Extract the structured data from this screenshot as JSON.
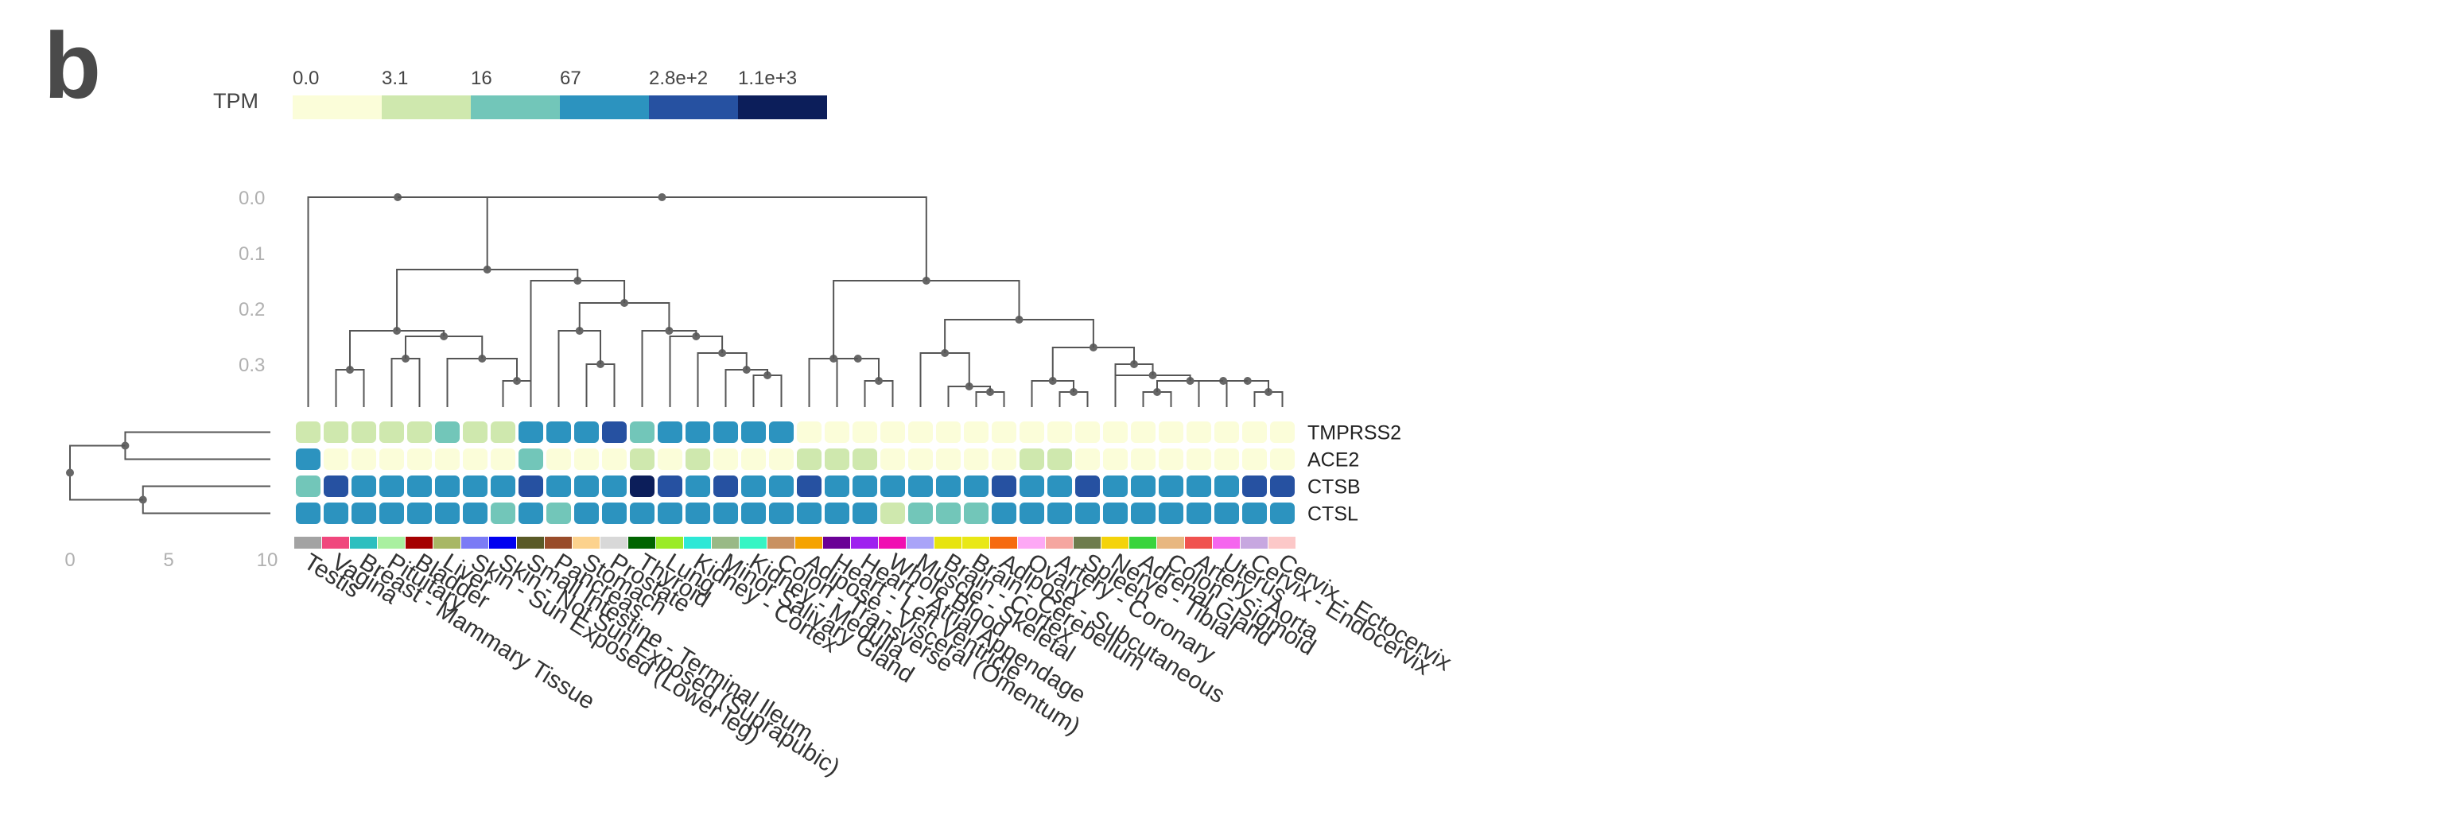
{
  "panel_label": "b",
  "chart_data": {
    "type": "heatmap",
    "title": "",
    "legend": {
      "label": "TPM",
      "ticks": [
        "0.0",
        "3.1",
        "16",
        "67",
        "2.8e+2",
        "1.1e+3"
      ],
      "colors": [
        "#fbfdd9",
        "#cfe8ae",
        "#72c6b9",
        "#2c93bf",
        "#2651a1",
        "#0c1e5a"
      ]
    },
    "col_dendrogram_axis": [
      "0.0",
      "0.1",
      "0.2",
      "0.3"
    ],
    "row_dendrogram_axis": [
      "0",
      "5",
      "10"
    ],
    "genes": [
      "TMPRSS2",
      "ACE2",
      "CTSB",
      "CTSL"
    ],
    "tissues": [
      {
        "name": "Testis",
        "color": "#a3a3a3"
      },
      {
        "name": "Vagina",
        "color": "#f0477d"
      },
      {
        "name": "Breast - Mammary Tissue",
        "color": "#2dbfbf"
      },
      {
        "name": "Pituitary",
        "color": "#a9f0a0"
      },
      {
        "name": "Bladder",
        "color": "#a50000"
      },
      {
        "name": "Liver",
        "color": "#a8b765"
      },
      {
        "name": "Skin - Sun Exposed (Lower leg)",
        "color": "#7b7bf5"
      },
      {
        "name": "Skin - Not Sun Exposed (Suprapubic)",
        "color": "#0000f0"
      },
      {
        "name": "Small Intestine - Terminal Ileum",
        "color": "#5a5a27"
      },
      {
        "name": "Pancreas",
        "color": "#994c2a"
      },
      {
        "name": "Stomach",
        "color": "#fcd28d"
      },
      {
        "name": "Prostate",
        "color": "#d8d8d8"
      },
      {
        "name": "Thyroid",
        "color": "#006400"
      },
      {
        "name": "Lung",
        "color": "#9aeb27"
      },
      {
        "name": "Kidney - Cortex",
        "color": "#2de8d6"
      },
      {
        "name": "Minor Salivary Gland",
        "color": "#99b986"
      },
      {
        "name": "Kidney - Medulla",
        "color": "#35f5c4"
      },
      {
        "name": "Colon - Transverse",
        "color": "#c99161"
      },
      {
        "name": "Adipose - Visceral (Omentum)",
        "color": "#f5a300"
      },
      {
        "name": "Heart - Left Ventricle",
        "color": "#6a0096"
      },
      {
        "name": "Heart - Atrial Appendage",
        "color": "#9f20ef"
      },
      {
        "name": "Whole Blood",
        "color": "#f00fb2"
      },
      {
        "name": "Muscle - Skeletal",
        "color": "#a9a4f8"
      },
      {
        "name": "Brain - Cortex",
        "color": "#e7e40e"
      },
      {
        "name": "Brain - Cerebellum",
        "color": "#e9e816"
      },
      {
        "name": "Adipose - Subcutaneous",
        "color": "#f66a10"
      },
      {
        "name": "Ovary",
        "color": "#fda8f5"
      },
      {
        "name": "Artery - Coronary",
        "color": "#f5a6a0"
      },
      {
        "name": "Spleen",
        "color": "#6e7c4d"
      },
      {
        "name": "Nerve - Tibial",
        "color": "#f4d30a"
      },
      {
        "name": "Adrenal Gland",
        "color": "#39d43d"
      },
      {
        "name": "Colon - Sigmoid",
        "color": "#e8b780"
      },
      {
        "name": "Artery - Aorta",
        "color": "#f0524f"
      },
      {
        "name": "Uterus",
        "color": "#f566ee"
      },
      {
        "name": "Cervix - Endocervix",
        "color": "#c7a7e0"
      },
      {
        "name": "Cervix - Ectocervix",
        "color": "#fcc8c8"
      }
    ],
    "values_level": [
      [
        1,
        1,
        1,
        1,
        1,
        2,
        1,
        1,
        3,
        3,
        3,
        4,
        2,
        3,
        3,
        3,
        3,
        3,
        0,
        0,
        0,
        0,
        0,
        0,
        0,
        0,
        0,
        0,
        0,
        0,
        0,
        0,
        0,
        0,
        0,
        0
      ],
      [
        3,
        0,
        0,
        0,
        0,
        0,
        0,
        0,
        2,
        0,
        0,
        0,
        1,
        0,
        1,
        0,
        0,
        0,
        1,
        1,
        1,
        0,
        0,
        0,
        0,
        0,
        1,
        1,
        0,
        0,
        0,
        0,
        0,
        0,
        0,
        0
      ],
      [
        2,
        4,
        3,
        3,
        3,
        3,
        3,
        3,
        4,
        3,
        3,
        3,
        5,
        4,
        3,
        4,
        3,
        3,
        4,
        3,
        3,
        3,
        3,
        3,
        3,
        4,
        3,
        3,
        4,
        3,
        3,
        3,
        3,
        3,
        4,
        4
      ],
      [
        3,
        3,
        3,
        3,
        3,
        3,
        3,
        2,
        3,
        2,
        3,
        3,
        3,
        3,
        3,
        3,
        3,
        3,
        3,
        3,
        3,
        1,
        2,
        2,
        2,
        3,
        3,
        3,
        3,
        3,
        3,
        3,
        3,
        3,
        3,
        3
      ]
    ],
    "col_order_note": "columns ordered by hierarchical clustering"
  }
}
